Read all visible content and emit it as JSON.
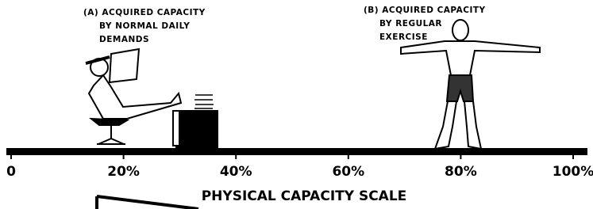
{
  "label_a": {
    "lines": [
      "(A) ACQUIRED CAPACITY",
      "BY NORMAL DAILY",
      "DEMANDS"
    ]
  },
  "label_b": {
    "lines": [
      "(B) ACQUIRED CAPACITY",
      "BY REGULAR",
      "EXERCISE"
    ]
  },
  "scale": {
    "title": "PHYSICAL CAPACITY SCALE",
    "range": [
      0,
      100
    ],
    "ticks": [
      {
        "value": 0,
        "label": "0"
      },
      {
        "value": 20,
        "label": "20%"
      },
      {
        "value": 40,
        "label": "40%"
      },
      {
        "value": 60,
        "label": "60%"
      },
      {
        "value": 80,
        "label": "80%"
      },
      {
        "value": 100,
        "label": "100%"
      }
    ]
  }
}
